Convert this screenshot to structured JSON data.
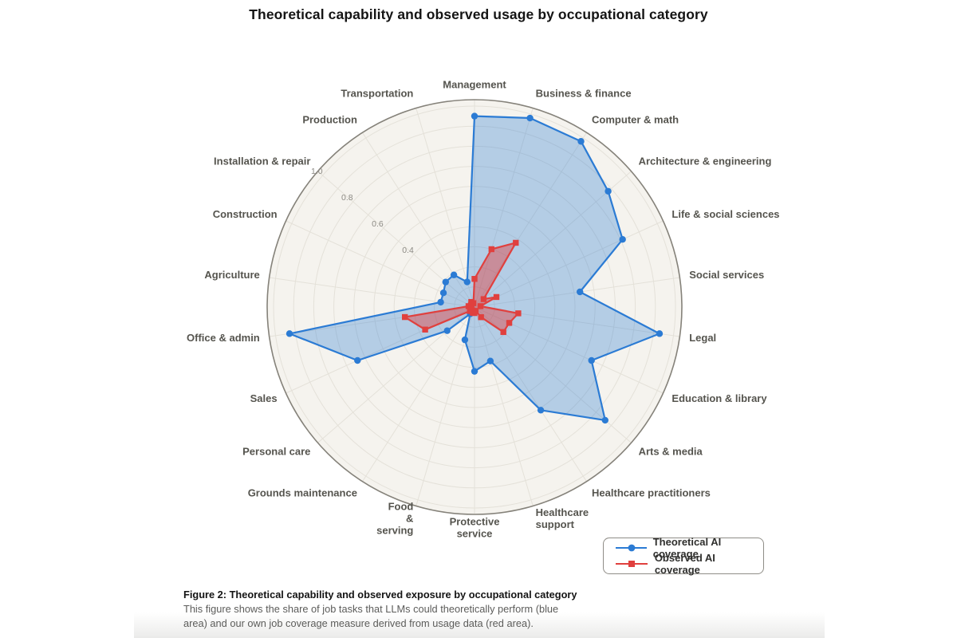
{
  "page": {
    "title": "Theoretical capability and observed usage by occupational category"
  },
  "caption": {
    "bold_line": "Figure 2: Theoretical capability and observed exposure by occupational category",
    "line2": "This figure shows the share of job tasks that LLMs could theoretically perform (blue",
    "line3": "area) and our own job coverage measure derived from usage data (red area)."
  },
  "legend": {
    "items": [
      {
        "label": "Theoretical AI coverage",
        "color": "#2b7bd4",
        "marker": "circle"
      },
      {
        "label": "Observed AI coverage",
        "color": "#e0403e",
        "marker": "square"
      }
    ]
  },
  "colors": {
    "accent_blue": "#2b7bd4",
    "accent_red": "#e0403e",
    "plot_bg": "#f5f3ee",
    "grid": "#e4e1d9",
    "outline": "#85827a",
    "tick_label": "#8c8a84",
    "category_label": "#55544e",
    "title_text": "#141414",
    "caption_gray": "#5c5c5a"
  },
  "chart_data": {
    "type": "radar",
    "title": "Theoretical capability and observed usage by occupational category",
    "categories": [
      "Management",
      "Business & finance",
      "Computer & math",
      "Architecture & engineering",
      "Life & social sciences",
      "Social services",
      "Legal",
      "Education & library",
      "Arts & media",
      "Healthcare practitioners",
      "Healthcare support",
      "Protective service",
      "Food & serving",
      "Grounds maintenance",
      "Personal care",
      "Sales",
      "Office & admin",
      "Agriculture",
      "Construction",
      "Installation & repair",
      "Production",
      "Transportation"
    ],
    "series": [
      {
        "name": "Theoretical AI coverage",
        "color": "#2b7bd4",
        "fill_color": "#2b7bd4",
        "fill_opacity": 0.32,
        "marker": "circle",
        "values": [
          0.95,
          0.98,
          0.98,
          0.88,
          0.81,
          0.53,
          0.93,
          0.64,
          0.86,
          0.61,
          0.28,
          0.32,
          0.17,
          0.04,
          0.18,
          0.64,
          0.93,
          0.17,
          0.17,
          0.19,
          0.19,
          0.13
        ]
      },
      {
        "name": "Observed AI coverage",
        "color": "#e0403e",
        "fill_color": "#e0403e",
        "fill_opacity": 0.45,
        "marker": "square",
        "values": [
          0.14,
          0.3,
          0.38,
          0.06,
          0.12,
          0.03,
          0.22,
          0.19,
          0.19,
          0.06,
          0.02,
          0.03,
          0.03,
          0.02,
          0.03,
          0.27,
          0.35,
          0.03,
          0.02,
          0.02,
          0.03,
          0.02
        ]
      }
    ],
    "rlim": [
      0,
      1.0
    ],
    "ring_step": 0.1,
    "radial_ticks": [
      0.4,
      0.6,
      0.8,
      1.0
    ],
    "radial_tick_labels": [
      "0.4",
      "0.6",
      "0.8",
      "1.0"
    ],
    "rlabel_spoke_index": 19,
    "grid": true,
    "direction": "clockwise",
    "start": "top",
    "legend_position": "bottom-right"
  }
}
